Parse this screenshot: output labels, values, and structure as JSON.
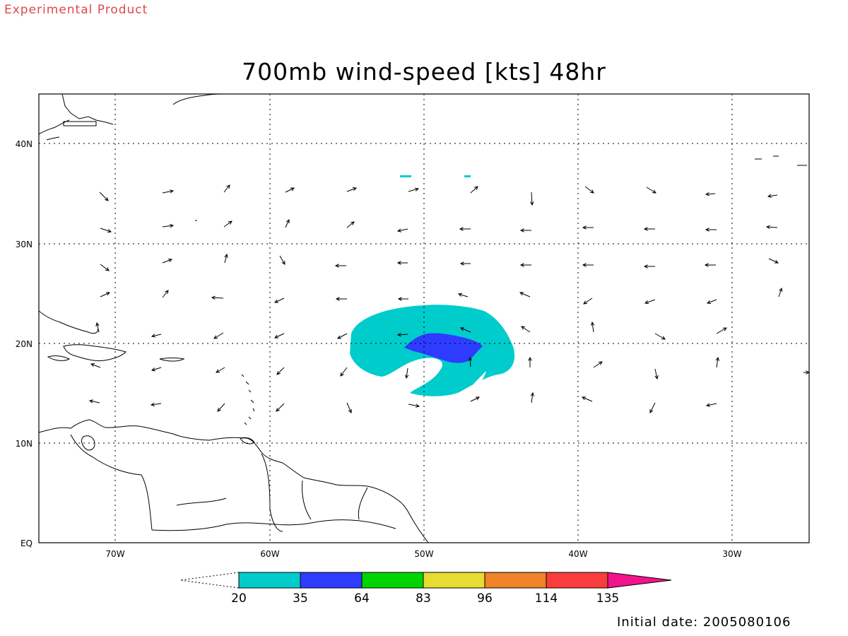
{
  "header": {
    "product_label": "Experimental Product",
    "title": "700mb wind-speed [kts] 48hr",
    "initial_date": "Initial date: 2005080106"
  },
  "colors": {
    "label_red": "#e04848",
    "band_20_35": "#00cccc",
    "band_35_64": "#2d3cff",
    "band_64_83": "#00d400",
    "band_83_96": "#e6dc32",
    "band_96_114": "#f08228",
    "band_114_135": "#fa3c3c",
    "band_135_plus": "#f0148c"
  },
  "map": {
    "lon_range": [
      -75,
      -25
    ],
    "lat_range": [
      0,
      45
    ],
    "lon_ticks": [
      "70W",
      "60W",
      "50W",
      "40W",
      "30W"
    ],
    "lat_ticks": [
      "EQ",
      "10N",
      "20N",
      "30N",
      "40N"
    ],
    "grid": "dotted"
  },
  "colorbar": {
    "labels": [
      "20",
      "35",
      "64",
      "83",
      "96",
      "114",
      "135"
    ],
    "colors": [
      "#00cccc",
      "#2d3cff",
      "#00d400",
      "#e6dc32",
      "#f08228",
      "#fa3c3c",
      "#f0148c"
    ]
  }
}
